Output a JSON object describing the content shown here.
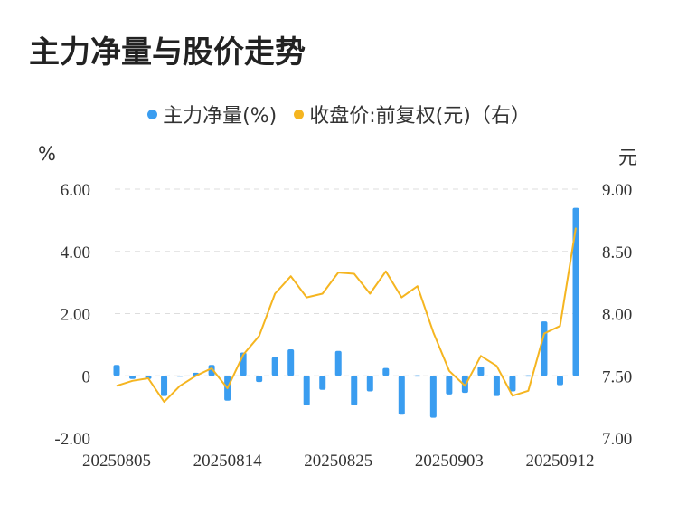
{
  "title": "主力净量与股价走势",
  "legend": {
    "series1": "主力净量(%)",
    "series2": "收盘价:前复权(元)（右）"
  },
  "units": {
    "left": "%",
    "right": "元"
  },
  "colors": {
    "bar": "#3a9df0",
    "line": "#f5b520",
    "grid": "#dddddd"
  },
  "chart_data": {
    "type": "bar",
    "title": "主力净量与股价走势",
    "x_tick_labels": [
      "20250805",
      "20250814",
      "20250825",
      "20250903",
      "20250912"
    ],
    "y_left": {
      "label": "%",
      "ylim": [
        -2.0,
        6.0
      ],
      "ticks": [
        "-2.00",
        "0",
        "2.00",
        "4.00",
        "6.00"
      ]
    },
    "y_right": {
      "label": "元",
      "ylim": [
        7.0,
        9.0
      ],
      "ticks": [
        "7.00",
        "7.50",
        "8.00",
        "8.50",
        "9.00"
      ]
    },
    "grid": true,
    "legend_position": "top-center",
    "series": [
      {
        "name": "主力净量(%)",
        "type": "bar",
        "axis": "left",
        "values": [
          0.35,
          -0.1,
          -0.1,
          -0.65,
          0.0,
          0.1,
          0.35,
          -0.8,
          0.75,
          -0.2,
          0.6,
          0.85,
          -0.95,
          -0.45,
          0.8,
          -0.95,
          -0.5,
          0.25,
          -1.25,
          0.02,
          -1.35,
          -0.6,
          -0.55,
          0.3,
          -0.65,
          -0.5,
          0.02,
          1.75,
          -0.3,
          5.4
        ]
      },
      {
        "name": "收盘价:前复权(元)（右）",
        "type": "line",
        "axis": "right",
        "values": [
          7.42,
          7.46,
          7.48,
          7.29,
          7.42,
          7.5,
          7.56,
          7.4,
          7.67,
          7.82,
          8.16,
          8.3,
          8.13,
          8.16,
          8.33,
          8.32,
          8.16,
          8.34,
          8.13,
          8.22,
          7.85,
          7.54,
          7.42,
          7.66,
          7.58,
          7.34,
          7.38,
          7.84,
          7.9,
          8.69
        ]
      }
    ]
  }
}
